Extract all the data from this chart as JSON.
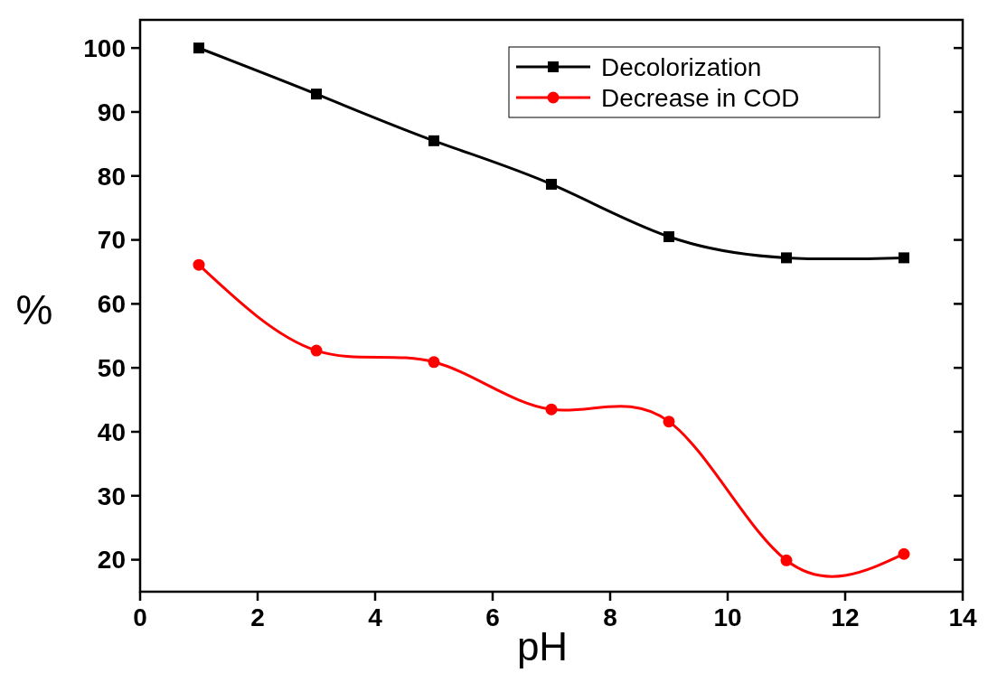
{
  "chart_data": {
    "type": "line",
    "xlabel": "pH",
    "ylabel": "%",
    "xlim": [
      0,
      14
    ],
    "xticks": [
      0,
      2,
      4,
      6,
      8,
      10,
      12,
      14
    ],
    "ylim": [
      15,
      104.4
    ],
    "yticks": [
      20,
      30,
      40,
      50,
      60,
      70,
      80,
      90,
      100
    ],
    "legend": "top right",
    "grid": false,
    "series": [
      {
        "name": "Decolorization",
        "color": "#000000",
        "marker": "square",
        "x": [
          1,
          3,
          5,
          7,
          9,
          11,
          13
        ],
        "values": [
          100,
          92.8,
          85.5,
          78.7,
          70.5,
          67.2,
          67.2
        ]
      },
      {
        "name": "Decrease in COD",
        "color": "#ff0000",
        "marker": "circle",
        "x": [
          1,
          3,
          5,
          7,
          9,
          11,
          13
        ],
        "values": [
          66.1,
          52.7,
          50.9,
          43.5,
          41.6,
          19.9,
          20.9
        ]
      }
    ]
  }
}
